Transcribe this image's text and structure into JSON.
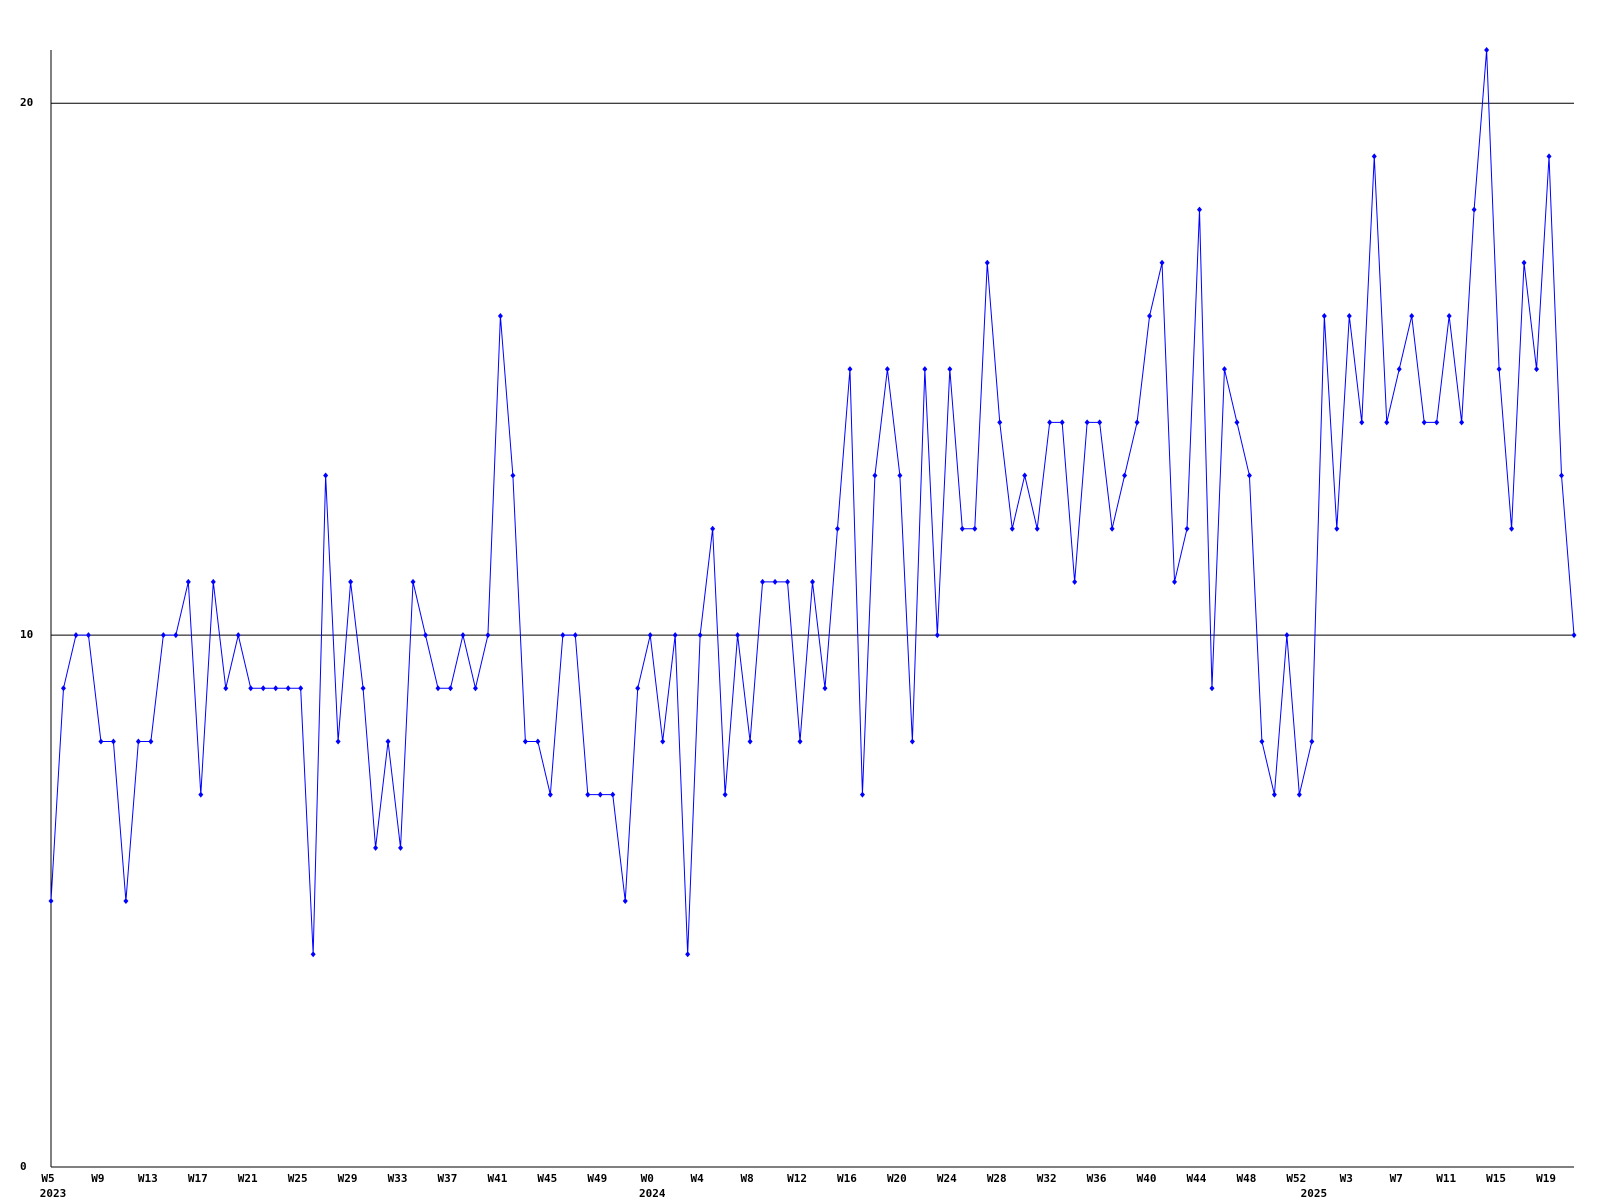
{
  "chart_data": {
    "type": "line",
    "categories": [
      "W5",
      null,
      null,
      null,
      "W9",
      null,
      null,
      null,
      "W13",
      null,
      null,
      null,
      "W17",
      null,
      null,
      null,
      "W21",
      null,
      null,
      null,
      "W25",
      null,
      null,
      null,
      "W29",
      null,
      null,
      null,
      "W33",
      null,
      null,
      null,
      "W37",
      null,
      null,
      null,
      "W41",
      null,
      null,
      null,
      "W45",
      null,
      null,
      null,
      "W49",
      null,
      null,
      null,
      "W0",
      null,
      null,
      null,
      "W4",
      null,
      null,
      null,
      "W8",
      null,
      null,
      null,
      "W12",
      null,
      null,
      null,
      "W16",
      null,
      null,
      null,
      "W20",
      null,
      null,
      null,
      "W24",
      null,
      null,
      null,
      "W28",
      null,
      null,
      null,
      "W32",
      null,
      null,
      null,
      "W36",
      null,
      null,
      null,
      "W40",
      null,
      null,
      null,
      "W44",
      null,
      null,
      null,
      "W48",
      null,
      null,
      null,
      "W52",
      null,
      null,
      null,
      "W3",
      null,
      null,
      null,
      "W7",
      null,
      null,
      null,
      "W11",
      null,
      null,
      null,
      "W15",
      null,
      null,
      null,
      "W19",
      null,
      null
    ],
    "years": [
      "2023",
      null,
      null,
      null,
      null,
      null,
      null,
      null,
      null,
      null,
      null,
      null,
      null,
      null,
      null,
      null,
      null,
      null,
      null,
      null,
      null,
      null,
      null,
      null,
      null,
      null,
      null,
      null,
      null,
      null,
      null,
      null,
      null,
      null,
      null,
      null,
      null,
      null,
      null,
      null,
      null,
      null,
      null,
      null,
      null,
      null,
      null,
      null,
      "2024",
      null,
      null,
      null,
      null,
      null,
      null,
      null,
      null,
      null,
      null,
      null,
      null,
      null,
      null,
      null,
      null,
      null,
      null,
      null,
      null,
      null,
      null,
      null,
      null,
      null,
      null,
      null,
      null,
      null,
      null,
      null,
      null,
      null,
      null,
      null,
      null,
      null,
      null,
      null,
      null,
      null,
      null,
      null,
      null,
      null,
      null,
      null,
      null,
      null,
      null,
      null,
      null,
      "2025",
      null,
      null,
      null,
      null,
      null,
      null,
      null,
      null,
      null,
      null,
      null,
      null,
      null,
      null,
      null,
      null,
      null,
      null,
      null,
      null,
      null
    ],
    "series": [
      {
        "color": "#0000ff",
        "values": [
          5,
          9,
          10,
          10,
          8,
          8,
          5,
          8,
          8,
          10,
          10,
          11,
          7,
          11,
          9,
          10,
          9,
          9,
          9,
          9,
          9,
          4,
          13,
          8,
          11,
          9,
          6,
          8,
          6,
          11,
          10,
          9,
          9,
          10,
          9,
          10,
          16,
          13,
          8,
          8,
          7,
          10,
          10,
          7,
          7,
          7,
          5,
          9,
          10,
          8,
          10,
          4,
          10,
          12,
          7,
          10,
          8,
          11,
          11,
          11,
          8,
          11,
          9,
          12,
          15,
          7,
          13,
          15,
          13,
          8,
          15,
          10,
          15,
          12,
          12,
          17,
          14,
          12,
          13,
          12,
          14,
          14,
          11,
          14,
          14,
          12,
          13,
          14,
          16,
          17,
          11,
          12,
          18,
          9,
          15,
          14,
          13,
          8,
          7,
          10,
          7,
          8,
          16,
          12,
          16,
          14,
          19,
          14,
          15,
          16,
          14,
          14,
          16,
          14,
          18,
          21,
          15,
          12,
          17,
          15,
          19,
          13,
          10
        ]
      }
    ],
    "ylim": [
      0,
      21
    ],
    "yticks": [
      0,
      10,
      20
    ],
    "grid": true
  }
}
